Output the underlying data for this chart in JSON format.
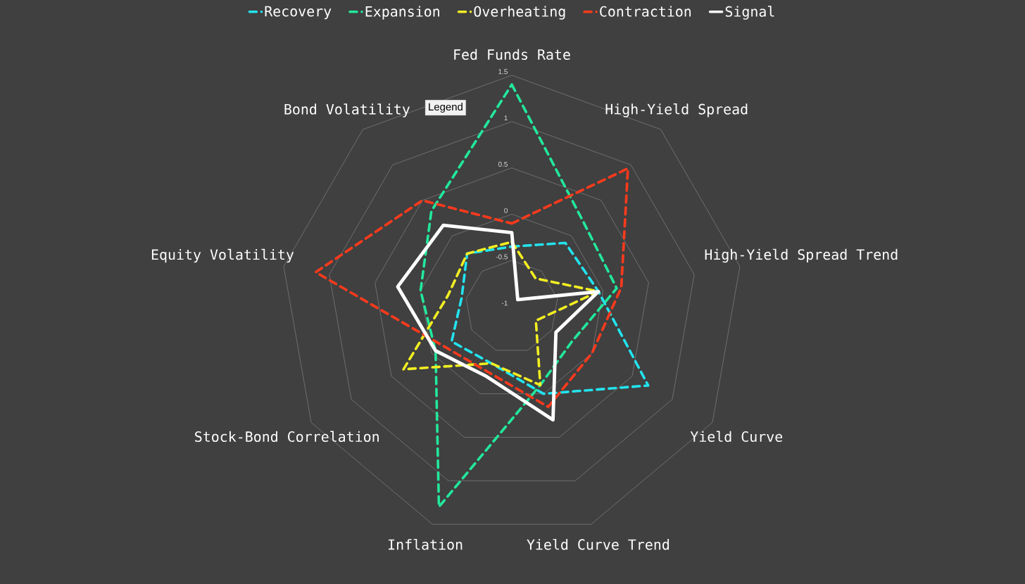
{
  "chart_data": {
    "type": "radar",
    "categories": [
      "Fed Funds Rate",
      "High-Yield Spread",
      "High-Yield Spread Trend",
      "Yield Curve",
      "Yield Curve Trend",
      "Inflation",
      "Stock-Bond Correlation",
      "Equity Volatility",
      "Bond Volatility"
    ],
    "series": [
      {
        "name": "Recovery",
        "color": "#22e3ee",
        "line_style": "dashed",
        "values": [
          -0.35,
          -0.1,
          -0.05,
          0.7,
          0,
          -0.35,
          -0.25,
          -0.45,
          -0.25
        ]
      },
      {
        "name": "Expansion",
        "color": "#22e89c",
        "line_style": "dashed",
        "values": [
          1.4,
          0.2,
          0.15,
          -0.25,
          -0.1,
          1.3,
          -0.05,
          0,
          0.35
        ]
      },
      {
        "name": "Overheating",
        "color": "#f2ee22",
        "line_style": "dashed",
        "values": [
          -0.3,
          -0.6,
          -0.05,
          -0.7,
          -0.1,
          -0.35,
          0.35,
          -0.3,
          -0.25
        ]
      },
      {
        "name": "Contraction",
        "color": "#ff3a1c",
        "line_style": "dashed",
        "values": [
          -0.1,
          0.95,
          0.2,
          0,
          0.15,
          -0.25,
          -0.15,
          1.15,
          0.5
        ]
      },
      {
        "name": "Signal",
        "color": "#ffffff",
        "line_style": "solid",
        "values": [
          -0.2,
          -0.9,
          -0.05,
          -0.45,
          0.3,
          -0.2,
          -0.05,
          0.25,
          0.15
        ]
      }
    ],
    "ylim": [
      -1,
      1.5
    ],
    "yticks": [
      -1,
      -0.5,
      0,
      0.5,
      1,
      1.5
    ],
    "grid": true,
    "legend": "top",
    "annotations": [
      "Legend"
    ]
  }
}
